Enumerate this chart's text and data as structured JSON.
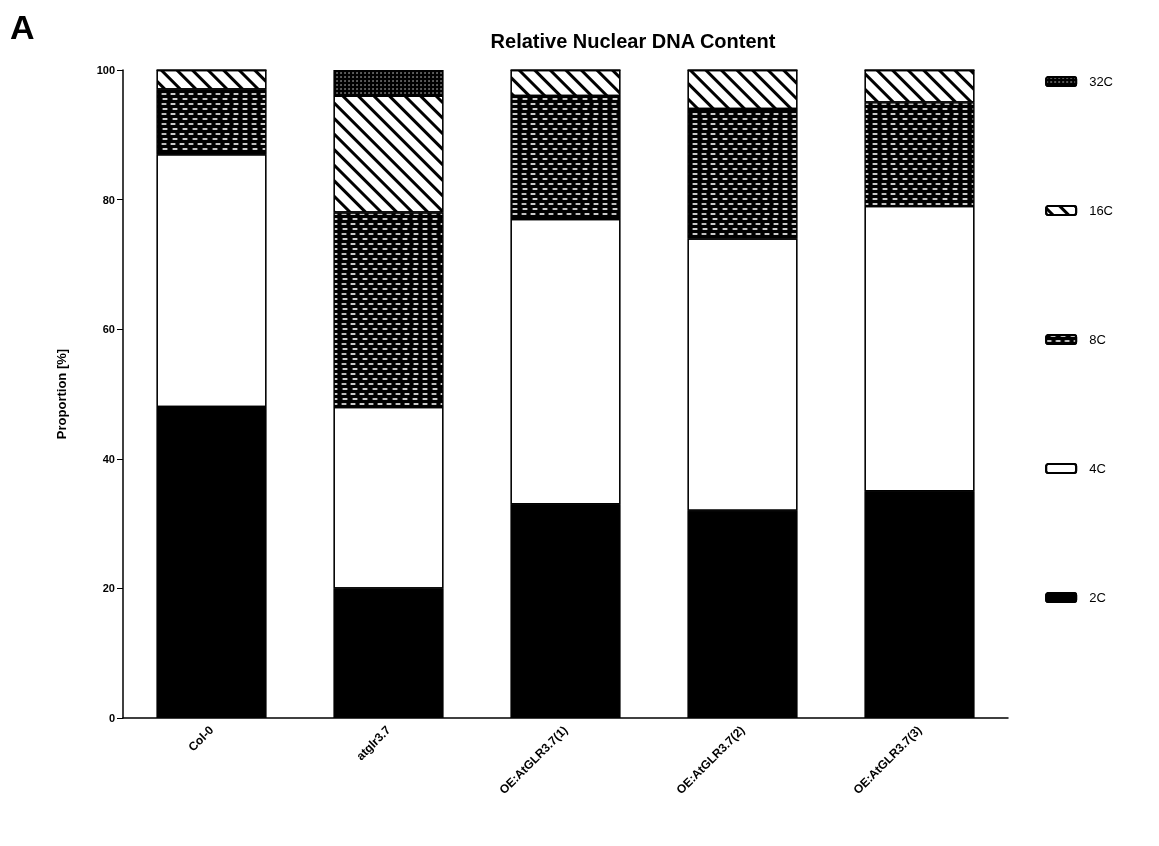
{
  "chart_data": {
    "type": "bar",
    "title": "Relative Nuclear DNA Content",
    "ylabel": "Proportion [%]",
    "annotations": [
      "A"
    ],
    "categories": [
      "Col-0",
      "atglr3.7",
      "OE:AtGLR3.7(1)",
      "OE:AtGLR3.7(2)",
      "OE:AtGLR3.7(3)"
    ],
    "stacked": true,
    "series": [
      {
        "name": "2C",
        "color": "#000000",
        "values": [
          48,
          20,
          33,
          32,
          35
        ]
      },
      {
        "name": "4C",
        "color": "#ffffff",
        "values": [
          39,
          28,
          44,
          42,
          44
        ]
      },
      {
        "name": "8C",
        "color": "#000000",
        "values": [
          10,
          30,
          19,
          20,
          16
        ]
      },
      {
        "name": "16C",
        "color": "#ffffff",
        "values": [
          3,
          18,
          4,
          6,
          5
        ]
      },
      {
        "name": "32C",
        "color": "#000000",
        "values": [
          0,
          4,
          0,
          0,
          0
        ]
      }
    ],
    "ylim": [
      0,
      100
    ],
    "yticks": [
      0,
      20,
      40,
      60,
      80,
      100
    ],
    "grid": false,
    "legend": "right"
  }
}
